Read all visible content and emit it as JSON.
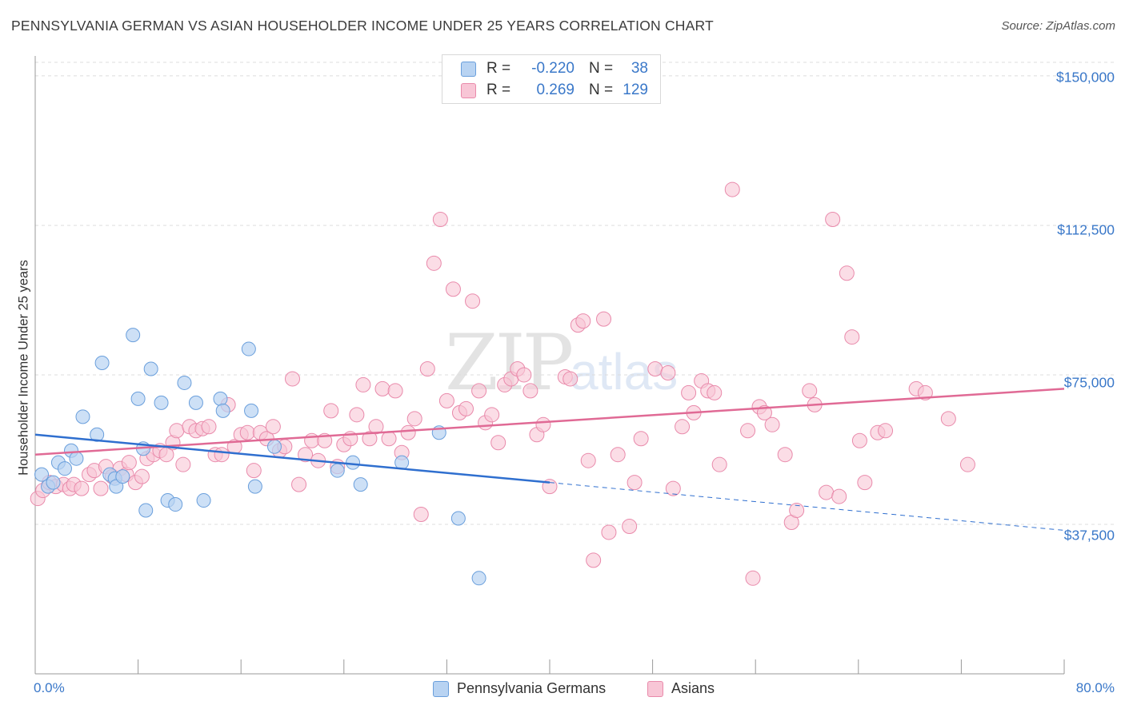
{
  "title": "PENNSYLVANIA GERMAN VS ASIAN HOUSEHOLDER INCOME UNDER 25 YEARS CORRELATION CHART",
  "source": "Source: ZipAtlas.com",
  "watermark": {
    "zip": "ZIP",
    "atlas": "atlas"
  },
  "legend_top": {
    "rows": [
      {
        "r_label": "R =",
        "r_value": "-0.220",
        "n_label": "N =",
        "n_value": "38"
      },
      {
        "r_label": "R =",
        "r_value": "0.269",
        "n_label": "N =",
        "n_value": "129"
      }
    ]
  },
  "legend_bottom": {
    "series1": "Pennsylvania Germans",
    "series2": "Asians"
  },
  "colors": {
    "blue_fill": "#b8d3f2",
    "blue_stroke": "#6a9fdc",
    "blue_line": "#2f6fcf",
    "pink_fill": "#f8c6d6",
    "pink_stroke": "#e98aab",
    "pink_line": "#e06a95",
    "axis_text": "#3a78c9",
    "grid": "#dcdcdc"
  },
  "chart_data": {
    "type": "scatter",
    "title": "PENNSYLVANIA GERMAN VS ASIAN HOUSEHOLDER INCOME UNDER 25 YEARS CORRELATION CHART",
    "xlabel": "",
    "ylabel": "Householder Income Under 25 years",
    "x_tick_labels": [
      "0.0%",
      "80.0%"
    ],
    "y_tick_labels": [
      "$37,500",
      "$75,000",
      "$112,500",
      "$150,000"
    ],
    "y_ticks": [
      37500,
      75000,
      112500,
      150000
    ],
    "xlim": [
      0,
      80
    ],
    "ylim": [
      0,
      155000
    ],
    "series": [
      {
        "name": "Pennsylvania Germans",
        "r": -0.22,
        "n": 38,
        "trend": {
          "x0": 0,
          "y0": 60000,
          "x1": 40,
          "y1": 48000,
          "dash_to_x": 80,
          "dash_to_y": 36000
        },
        "points": [
          [
            0.5,
            50000
          ],
          [
            1.0,
            47000
          ],
          [
            1.4,
            48000
          ],
          [
            1.8,
            53000
          ],
          [
            2.3,
            51500
          ],
          [
            2.8,
            56000
          ],
          [
            3.2,
            54000
          ],
          [
            3.7,
            64500
          ],
          [
            4.8,
            60000
          ],
          [
            5.2,
            78000
          ],
          [
            5.8,
            50000
          ],
          [
            6.2,
            49000
          ],
          [
            6.3,
            47000
          ],
          [
            6.8,
            49500
          ],
          [
            7.6,
            85000
          ],
          [
            8.0,
            69000
          ],
          [
            8.4,
            56500
          ],
          [
            8.6,
            41000
          ],
          [
            9.0,
            76500
          ],
          [
            9.8,
            68000
          ],
          [
            10.3,
            43500
          ],
          [
            10.9,
            42500
          ],
          [
            11.6,
            73000
          ],
          [
            12.5,
            68000
          ],
          [
            13.1,
            43500
          ],
          [
            14.4,
            69000
          ],
          [
            14.6,
            66000
          ],
          [
            16.6,
            81500
          ],
          [
            16.8,
            66000
          ],
          [
            17.1,
            47000
          ],
          [
            18.6,
            57000
          ],
          [
            23.5,
            51000
          ],
          [
            24.7,
            53000
          ],
          [
            25.3,
            47500
          ],
          [
            28.5,
            53000
          ],
          [
            31.4,
            60500
          ],
          [
            32.9,
            39000
          ],
          [
            34.5,
            24000
          ]
        ]
      },
      {
        "name": "Asians",
        "r": 0.269,
        "n": 129,
        "trend": {
          "x0": 0,
          "y0": 55000,
          "x1": 80,
          "y1": 71500
        },
        "points": [
          [
            0.2,
            44000
          ],
          [
            0.6,
            46000
          ],
          [
            1.1,
            48000
          ],
          [
            1.6,
            47000
          ],
          [
            2.2,
            47500
          ],
          [
            2.7,
            46500
          ],
          [
            3.0,
            47500
          ],
          [
            3.6,
            46500
          ],
          [
            4.2,
            50000
          ],
          [
            4.6,
            51000
          ],
          [
            5.1,
            46500
          ],
          [
            5.5,
            52000
          ],
          [
            6.0,
            49500
          ],
          [
            6.6,
            51500
          ],
          [
            7.1,
            50000
          ],
          [
            7.3,
            53000
          ],
          [
            7.8,
            48000
          ],
          [
            8.3,
            49500
          ],
          [
            8.7,
            54000
          ],
          [
            9.2,
            55000
          ],
          [
            9.7,
            56000
          ],
          [
            10.2,
            55000
          ],
          [
            10.7,
            58000
          ],
          [
            11.0,
            61000
          ],
          [
            11.5,
            52500
          ],
          [
            12.0,
            62000
          ],
          [
            12.5,
            61000
          ],
          [
            13.0,
            61500
          ],
          [
            13.5,
            62000
          ],
          [
            14.0,
            55000
          ],
          [
            14.5,
            55000
          ],
          [
            15.0,
            67500
          ],
          [
            15.5,
            57000
          ],
          [
            16.0,
            60000
          ],
          [
            16.5,
            60500
          ],
          [
            17.0,
            51000
          ],
          [
            17.5,
            60500
          ],
          [
            18.0,
            59000
          ],
          [
            18.5,
            62000
          ],
          [
            19.0,
            56000
          ],
          [
            19.4,
            57000
          ],
          [
            20.0,
            74000
          ],
          [
            20.5,
            47500
          ],
          [
            21.0,
            55000
          ],
          [
            21.5,
            58500
          ],
          [
            22.0,
            53500
          ],
          [
            22.5,
            58500
          ],
          [
            23.0,
            66000
          ],
          [
            23.5,
            52000
          ],
          [
            24.0,
            57500
          ],
          [
            24.5,
            59000
          ],
          [
            25.0,
            65000
          ],
          [
            25.5,
            72500
          ],
          [
            26.0,
            59000
          ],
          [
            26.5,
            62000
          ],
          [
            27.0,
            71500
          ],
          [
            27.5,
            59000
          ],
          [
            28.0,
            71000
          ],
          [
            28.5,
            55500
          ],
          [
            29.0,
            60500
          ],
          [
            29.5,
            64000
          ],
          [
            30.0,
            40000
          ],
          [
            30.5,
            76500
          ],
          [
            31.0,
            103000
          ],
          [
            31.5,
            114000
          ],
          [
            32.0,
            68500
          ],
          [
            32.5,
            96500
          ],
          [
            33.0,
            65500
          ],
          [
            33.5,
            66500
          ],
          [
            34.0,
            93500
          ],
          [
            34.5,
            71000
          ],
          [
            35.0,
            63000
          ],
          [
            35.5,
            65000
          ],
          [
            36.0,
            58000
          ],
          [
            36.5,
            72500
          ],
          [
            37.0,
            74000
          ],
          [
            37.5,
            76500
          ],
          [
            38.0,
            75000
          ],
          [
            38.5,
            71000
          ],
          [
            39.0,
            60000
          ],
          [
            39.5,
            62500
          ],
          [
            40.0,
            47000
          ],
          [
            41.2,
            74500
          ],
          [
            41.6,
            74000
          ],
          [
            42.2,
            87500
          ],
          [
            42.6,
            88500
          ],
          [
            43.0,
            53500
          ],
          [
            43.4,
            28500
          ],
          [
            44.2,
            89000
          ],
          [
            44.6,
            35500
          ],
          [
            45.3,
            55000
          ],
          [
            46.2,
            37000
          ],
          [
            46.6,
            48000
          ],
          [
            47.1,
            59000
          ],
          [
            48.2,
            76500
          ],
          [
            49.2,
            75500
          ],
          [
            49.6,
            46500
          ],
          [
            50.3,
            62000
          ],
          [
            50.8,
            70500
          ],
          [
            51.2,
            65500
          ],
          [
            51.8,
            73500
          ],
          [
            52.3,
            71000
          ],
          [
            52.8,
            70500
          ],
          [
            53.2,
            52500
          ],
          [
            54.2,
            121500
          ],
          [
            55.4,
            61000
          ],
          [
            55.8,
            24000
          ],
          [
            56.3,
            67000
          ],
          [
            56.7,
            65500
          ],
          [
            57.3,
            62500
          ],
          [
            58.3,
            55000
          ],
          [
            58.8,
            38000
          ],
          [
            59.2,
            41000
          ],
          [
            60.2,
            71000
          ],
          [
            60.6,
            67500
          ],
          [
            61.5,
            45500
          ],
          [
            62.0,
            114000
          ],
          [
            62.5,
            44500
          ],
          [
            63.1,
            100500
          ],
          [
            63.5,
            84500
          ],
          [
            64.1,
            58500
          ],
          [
            64.5,
            48000
          ],
          [
            65.5,
            60500
          ],
          [
            66.1,
            61000
          ],
          [
            68.5,
            71500
          ],
          [
            69.2,
            70500
          ],
          [
            71.0,
            64000
          ],
          [
            72.5,
            52500
          ]
        ]
      }
    ]
  }
}
